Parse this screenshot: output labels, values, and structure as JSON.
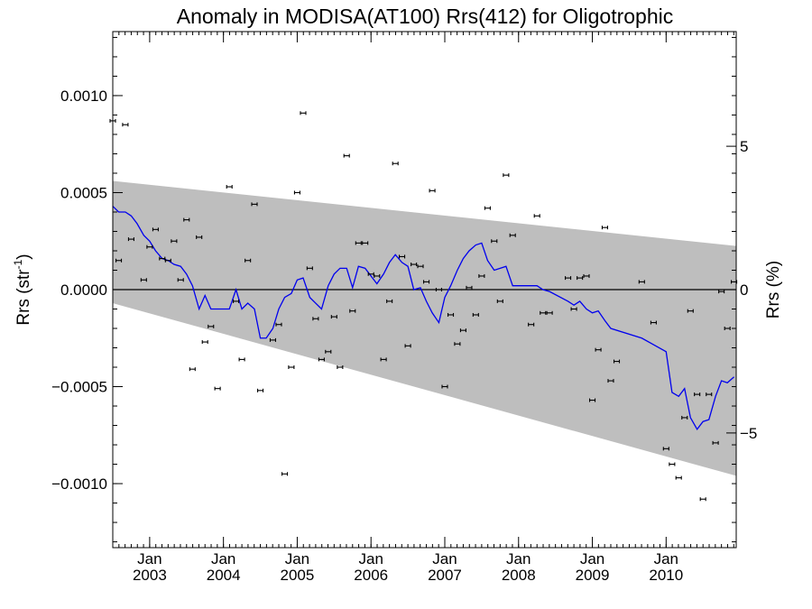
{
  "chart_data": {
    "type": "scatter",
    "title": "Anomaly in MODISA(AT100) Rrs(412) for Oligotrophic",
    "ylabel_left": "Rrs (str",
    "ylabel_left_sup": "-1",
    "ylabel_left_close": ")",
    "ylabel_right": "Rrs (%)",
    "xlim": [
      2002.5,
      2010.95
    ],
    "ylim": [
      -0.00133,
      0.00133
    ],
    "y2lim": [
      -9.0,
      9.0
    ],
    "y_ticks": [
      {
        "value": 0.001,
        "label": "0.0010"
      },
      {
        "value": 0.0005,
        "label": "0.0005"
      },
      {
        "value": 0.0,
        "label": "0.0000"
      },
      {
        "value": -0.0005,
        "label": "−0.0005"
      },
      {
        "value": -0.001,
        "label": "−0.0010"
      }
    ],
    "y2_ticks": [
      {
        "value": 5,
        "label": "5"
      },
      {
        "value": 0,
        "label": "0"
      },
      {
        "value": -5,
        "label": "−5"
      }
    ],
    "x_ticks": [
      {
        "value": 2003.0,
        "month": "Jan",
        "year": "2003"
      },
      {
        "value": 2004.0,
        "month": "Jan",
        "year": "2004"
      },
      {
        "value": 2005.0,
        "month": "Jan",
        "year": "2005"
      },
      {
        "value": 2006.0,
        "month": "Jan",
        "year": "2006"
      },
      {
        "value": 2007.0,
        "month": "Jan",
        "year": "2007"
      },
      {
        "value": 2008.0,
        "month": "Jan",
        "year": "2008"
      },
      {
        "value": 2009.0,
        "month": "Jan",
        "year": "2009"
      },
      {
        "value": 2010.0,
        "month": "Jan",
        "year": "2010"
      }
    ],
    "confidence_band": {
      "x": [
        2002.5,
        2010.95
      ],
      "upper": [
        0.00056,
        0.000225
      ],
      "lower": [
        -7e-05,
        -0.00096
      ]
    },
    "series": [
      {
        "type": "scatter",
        "x": [
          2002.5,
          2002.58,
          2002.67,
          2002.75,
          2002.92,
          2003.0,
          2003.08,
          2003.17,
          2003.25,
          2003.33,
          2003.42,
          2003.5,
          2003.58,
          2003.67,
          2003.75,
          2003.83,
          2003.92,
          2004.08,
          2004.17,
          2004.25,
          2004.33,
          2004.42,
          2004.5,
          2004.67,
          2004.75,
          2004.83,
          2004.92,
          2005.0,
          2005.08,
          2005.17,
          2005.25,
          2005.33,
          2005.42,
          2005.5,
          2005.58,
          2005.67,
          2005.75,
          2005.83,
          2005.92,
          2006.0,
          2006.08,
          2006.17,
          2006.25,
          2006.33,
          2006.42,
          2006.5,
          2006.58,
          2006.67,
          2006.75,
          2006.83,
          2006.92,
          2007.0,
          2007.08,
          2007.17,
          2007.25,
          2007.33,
          2007.42,
          2007.5,
          2007.58,
          2007.67,
          2007.75,
          2007.83,
          2007.92,
          2008.17,
          2008.25,
          2008.33,
          2008.42,
          2008.67,
          2008.75,
          2008.83,
          2008.92,
          2009.0,
          2009.08,
          2009.17,
          2009.25,
          2009.33,
          2009.67,
          2009.83,
          2010.0,
          2010.08,
          2010.17,
          2010.25,
          2010.33,
          2010.42,
          2010.5,
          2010.58,
          2010.67,
          2010.75,
          2010.83,
          2010.92
        ],
        "y": [
          0.00087,
          0.00015,
          0.00085,
          0.00026,
          5e-05,
          0.00022,
          0.00031,
          0.00016,
          0.00015,
          0.00025,
          5e-05,
          0.00036,
          -0.00041,
          0.00027,
          -0.00027,
          -0.00019,
          -0.00051,
          0.00053,
          -6e-05,
          -0.00036,
          0.00015,
          0.00044,
          -0.00052,
          -0.00026,
          -0.00018,
          -0.00095,
          -0.0004,
          0.0005,
          0.00091,
          0.00011,
          -0.00015,
          -0.00036,
          -0.00032,
          -0.00014,
          -0.0004,
          0.00069,
          -0.00011,
          0.00024,
          0.00024,
          8e-05,
          7e-05,
          -0.00036,
          -6e-05,
          0.00065,
          0.00017,
          -0.00029,
          0.00013,
          0.00012,
          4e-05,
          0.00051,
          0.0,
          -0.0005,
          -0.00013,
          -0.00028,
          -0.00021,
          1e-05,
          -0.00013,
          7e-05,
          0.00042,
          0.00025,
          -6e-05,
          0.00059,
          0.00028,
          -0.00018,
          0.00038,
          -0.00012,
          -0.00012,
          6e-05,
          -0.0001,
          6e-05,
          7e-05,
          -0.00057,
          -0.00031,
          0.00032,
          -0.00047,
          -0.00037,
          4e-05,
          -0.00017,
          -0.00082,
          -0.0009,
          -0.00097,
          -0.00066,
          -0.00011,
          -0.00054,
          -0.00108,
          -0.00054,
          -0.00079,
          -1e-05,
          -0.0002,
          4e-05
        ]
      },
      {
        "type": "line",
        "color": "#0000ee",
        "x": [
          2002.5,
          2002.58,
          2002.67,
          2002.75,
          2002.83,
          2002.92,
          2003.0,
          2003.08,
          2003.17,
          2003.25,
          2003.33,
          2003.42,
          2003.5,
          2003.58,
          2003.67,
          2003.75,
          2003.83,
          2003.92,
          2004.0,
          2004.08,
          2004.17,
          2004.25,
          2004.33,
          2004.42,
          2004.5,
          2004.58,
          2004.67,
          2004.75,
          2004.83,
          2004.92,
          2005.0,
          2005.08,
          2005.17,
          2005.25,
          2005.33,
          2005.42,
          2005.5,
          2005.58,
          2005.67,
          2005.75,
          2005.83,
          2005.92,
          2006.0,
          2006.08,
          2006.17,
          2006.25,
          2006.33,
          2006.42,
          2006.5,
          2006.58,
          2006.67,
          2006.75,
          2006.83,
          2006.92,
          2007.0,
          2007.08,
          2007.17,
          2007.25,
          2007.33,
          2007.42,
          2007.5,
          2007.58,
          2007.67,
          2007.75,
          2007.83,
          2007.92,
          2008.0,
          2008.25,
          2008.33,
          2008.42,
          2008.67,
          2008.75,
          2008.83,
          2008.92,
          2009.0,
          2009.08,
          2009.17,
          2009.25,
          2009.67,
          2010.0,
          2010.08,
          2010.17,
          2010.25,
          2010.33,
          2010.42,
          2010.5,
          2010.58,
          2010.67,
          2010.75,
          2010.83,
          2010.92
        ],
        "y": [
          0.00043,
          0.0004,
          0.0004,
          0.00038,
          0.00034,
          0.00028,
          0.00025,
          0.0002,
          0.00016,
          0.00015,
          0.00013,
          0.00012,
          8e-05,
          2e-05,
          -0.0001,
          -3e-05,
          -0.0001,
          -0.0001,
          -0.0001,
          -0.0001,
          0.0,
          -0.0001,
          -7e-05,
          -0.0001,
          -0.00025,
          -0.00025,
          -0.0002,
          -0.0001,
          -4e-05,
          -2e-05,
          5e-05,
          6e-05,
          -4e-05,
          -7e-05,
          -0.0001,
          2e-05,
          8e-05,
          0.00011,
          0.00011,
          1e-05,
          0.00012,
          0.00011,
          7e-05,
          3e-05,
          8e-05,
          0.00014,
          0.00018,
          0.00014,
          0.00012,
          0.0,
          1e-05,
          -6e-05,
          -0.00012,
          -0.00017,
          -4e-05,
          2e-05,
          0.0001,
          0.00016,
          0.0002,
          0.00023,
          0.00024,
          0.00015,
          0.0001,
          0.00011,
          0.00012,
          2e-05,
          2e-05,
          2e-05,
          0.0,
          -1e-05,
          -6e-05,
          -8e-05,
          -6e-05,
          -0.0001,
          -0.00012,
          -0.00011,
          -0.00016,
          -0.0002,
          -0.00025,
          -0.00032,
          -0.00053,
          -0.00055,
          -0.00051,
          -0.00066,
          -0.00072,
          -0.00068,
          -0.00067,
          -0.00055,
          -0.00047,
          -0.00048,
          -0.00045
        ]
      }
    ]
  }
}
